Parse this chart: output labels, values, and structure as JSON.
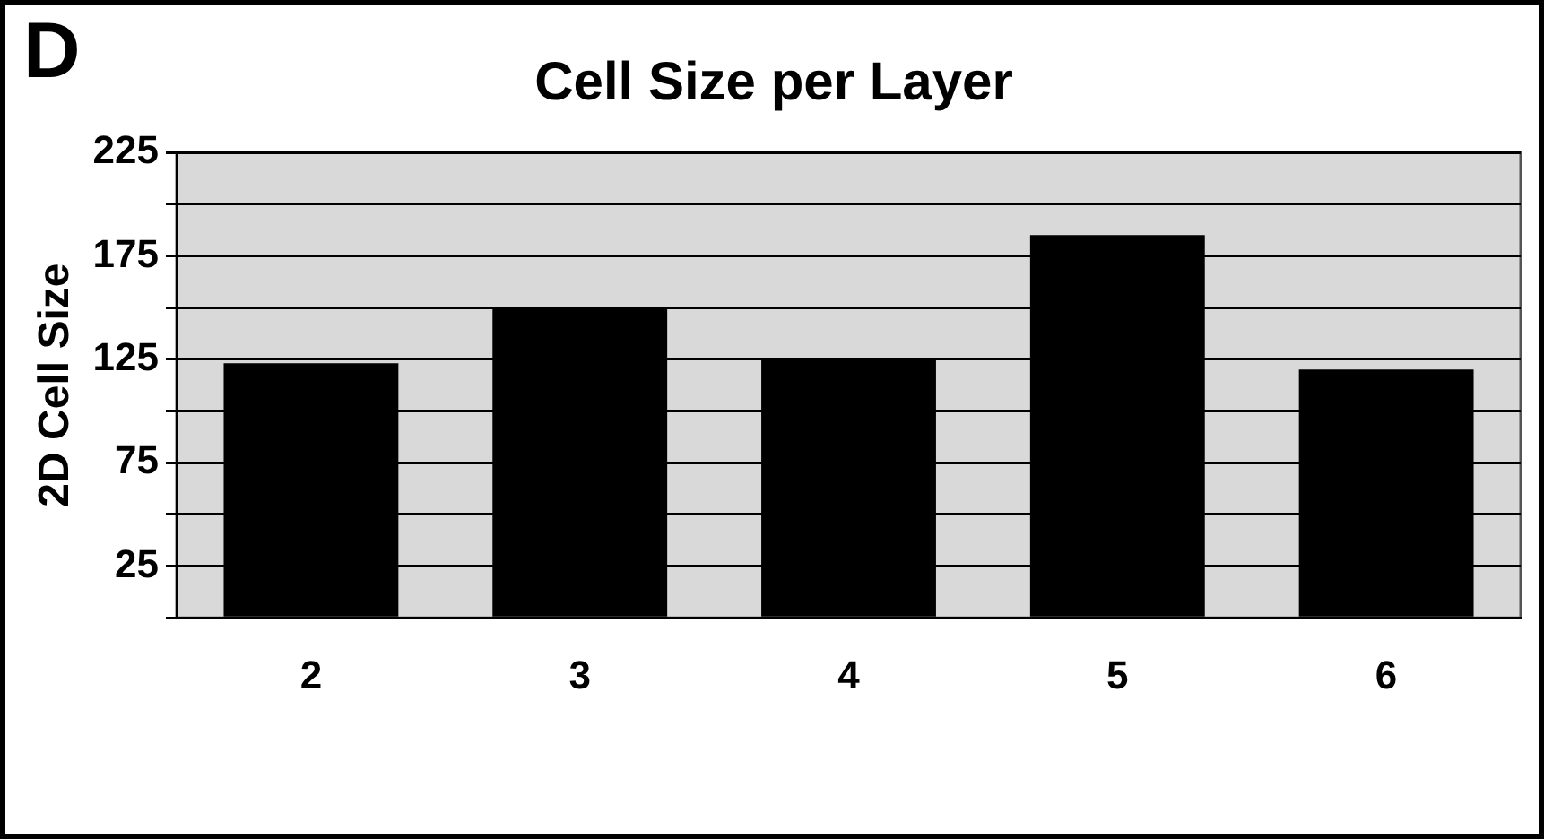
{
  "chart_data": {
    "type": "bar",
    "title": "Cell Size per Layer",
    "ylabel": "2D Cell Size",
    "annotations": [
      "D"
    ],
    "categories": [
      "2",
      "3",
      "4",
      "5",
      "6"
    ],
    "values": [
      123,
      150,
      125,
      185,
      120
    ],
    "color": "#000000",
    "ylim": [
      0,
      225
    ],
    "yticks": [
      {
        "value": 0,
        "label": null
      },
      25,
      {
        "value": 50,
        "label": null
      },
      75,
      {
        "value": 100,
        "label": null
      },
      125,
      {
        "value": 150,
        "label": null
      },
      175,
      {
        "value": 200,
        "label": null
      },
      225
    ],
    "grid": "y",
    "legend": false
  }
}
